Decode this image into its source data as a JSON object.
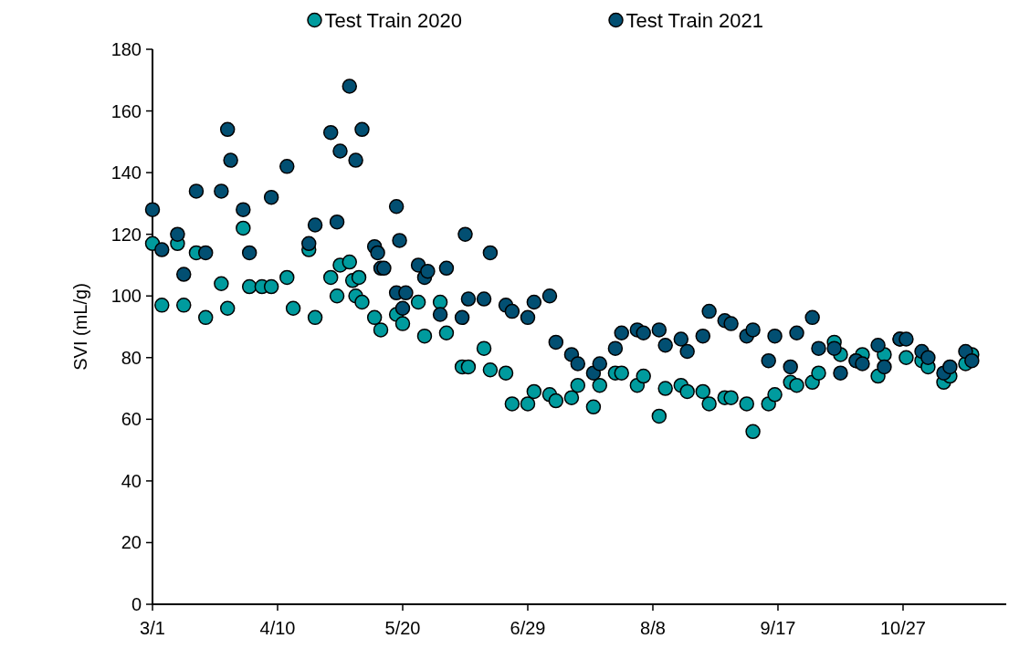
{
  "chart_data": {
    "type": "scatter",
    "ylabel": "SVI (mL/g)",
    "marker": "circle",
    "legend": "top",
    "grid": false,
    "xlim": [
      "--03-01",
      "--11-29"
    ],
    "xticks": [
      {
        "value": "--03-01",
        "label": "3/1"
      },
      {
        "value": "--04-10",
        "label": "4/10"
      },
      {
        "value": "--05-20",
        "label": "5/20"
      },
      {
        "value": "--06-29",
        "label": "6/29"
      },
      {
        "value": "--08-08",
        "label": "8/8"
      },
      {
        "value": "--09-17",
        "label": "9/17"
      },
      {
        "value": "--10-27",
        "label": "10/27"
      }
    ],
    "ylim": [
      0,
      180
    ],
    "yticks": [
      0,
      20,
      40,
      60,
      80,
      100,
      120,
      140,
      160,
      180
    ],
    "series": [
      {
        "name": "Test Train 2020",
        "color": "#009b9e",
        "x": [
          "--03-01",
          "--03-04",
          "--03-09",
          "--03-11",
          "--03-15",
          "--03-18",
          "--03-23",
          "--03-25",
          "--03-30",
          "--04-01",
          "--04-05",
          "--04-08",
          "--04-13",
          "--04-15",
          "--04-20",
          "--04-22",
          "--04-27",
          "--04-29",
          "--04-30",
          "--05-03",
          "--05-04",
          "--05-05",
          "--05-06",
          "--05-07",
          "--05-11",
          "--05-13",
          "--05-18",
          "--05-20",
          "--05-25",
          "--05-27",
          "--06-01",
          "--06-03",
          "--06-08",
          "--06-10",
          "--06-15",
          "--06-17",
          "--06-22",
          "--06-24",
          "--06-29",
          "--07-01",
          "--07-06",
          "--07-08",
          "--07-13",
          "--07-15",
          "--07-20",
          "--07-22",
          "--07-27",
          "--07-29",
          "--08-03",
          "--08-05",
          "--08-10",
          "--08-12",
          "--08-17",
          "--08-19",
          "--08-24",
          "--08-26",
          "--08-31",
          "--09-02",
          "--09-07",
          "--09-09",
          "--09-14",
          "--09-16",
          "--09-21",
          "--09-23",
          "--09-28",
          "--09-30",
          "--10-05",
          "--10-07",
          "--10-12",
          "--10-14",
          "--10-19",
          "--10-21",
          "--10-26",
          "--10-28",
          "--11-02",
          "--11-04",
          "--11-09",
          "--11-11",
          "--11-16",
          "--11-18"
        ],
        "values": [
          117,
          97,
          117,
          97,
          114,
          93,
          104,
          96,
          122,
          103,
          103,
          103,
          106,
          96,
          115,
          93,
          106,
          100,
          110,
          111,
          105,
          100,
          106,
          98,
          93,
          89,
          94,
          91,
          98,
          87,
          98,
          88,
          77,
          77,
          83,
          76,
          75,
          65,
          65,
          69,
          68,
          66,
          67,
          71,
          64,
          71,
          75,
          75,
          71,
          74,
          61,
          70,
          71,
          69,
          69,
          65,
          67,
          67,
          65,
          56,
          65,
          68,
          72,
          71,
          72,
          75,
          85,
          81,
          79,
          81,
          74,
          81,
          86,
          80,
          79,
          77,
          72,
          74,
          78,
          81
        ]
      },
      {
        "name": "Test Train 2021",
        "color": "#024f72",
        "x": [
          "--03-01",
          "--03-04",
          "--03-09",
          "--03-11",
          "--03-15",
          "--03-18",
          "--03-23",
          "--03-25",
          "--03-26",
          "--03-30",
          "--04-01",
          "--04-08",
          "--04-13",
          "--04-20",
          "--04-22",
          "--04-27",
          "--04-29",
          "--04-30",
          "--05-03",
          "--05-05",
          "--05-07",
          "--05-11",
          "--05-12",
          "--05-13",
          "--05-14",
          "--05-18",
          "--05-18",
          "--05-19",
          "--05-20",
          "--05-21",
          "--05-25",
          "--05-27",
          "--05-28",
          "--06-01",
          "--06-03",
          "--06-08",
          "--06-09",
          "--06-10",
          "--06-15",
          "--06-17",
          "--06-22",
          "--06-24",
          "--06-29",
          "--07-01",
          "--07-06",
          "--07-08",
          "--07-13",
          "--07-15",
          "--07-20",
          "--07-22",
          "--07-27",
          "--07-29",
          "--08-03",
          "--08-05",
          "--08-10",
          "--08-12",
          "--08-17",
          "--08-19",
          "--08-24",
          "--08-26",
          "--08-31",
          "--09-02",
          "--09-07",
          "--09-09",
          "--09-14",
          "--09-16",
          "--09-21",
          "--09-23",
          "--09-28",
          "--09-30",
          "--10-05",
          "--10-07",
          "--10-12",
          "--10-14",
          "--10-19",
          "--10-21",
          "--10-26",
          "--10-28",
          "--11-02",
          "--11-04",
          "--11-09",
          "--11-11",
          "--11-16",
          "--11-18"
        ],
        "values": [
          128,
          115,
          120,
          107,
          134,
          114,
          134,
          154,
          144,
          128,
          114,
          132,
          142,
          117,
          123,
          153,
          124,
          147,
          168,
          144,
          154,
          116,
          114,
          109,
          109,
          101,
          129,
          118,
          96,
          101,
          110,
          106,
          108,
          94,
          109,
          93,
          120,
          99,
          99,
          114,
          97,
          95,
          93,
          98,
          100,
          85,
          81,
          78,
          75,
          78,
          83,
          88,
          89,
          88,
          89,
          84,
          86,
          82,
          87,
          95,
          92,
          91,
          87,
          89,
          79,
          87,
          77,
          88,
          93,
          83,
          83,
          75,
          79,
          78,
          84,
          77,
          86,
          86,
          82,
          80,
          75,
          77,
          82,
          79
        ]
      }
    ]
  }
}
